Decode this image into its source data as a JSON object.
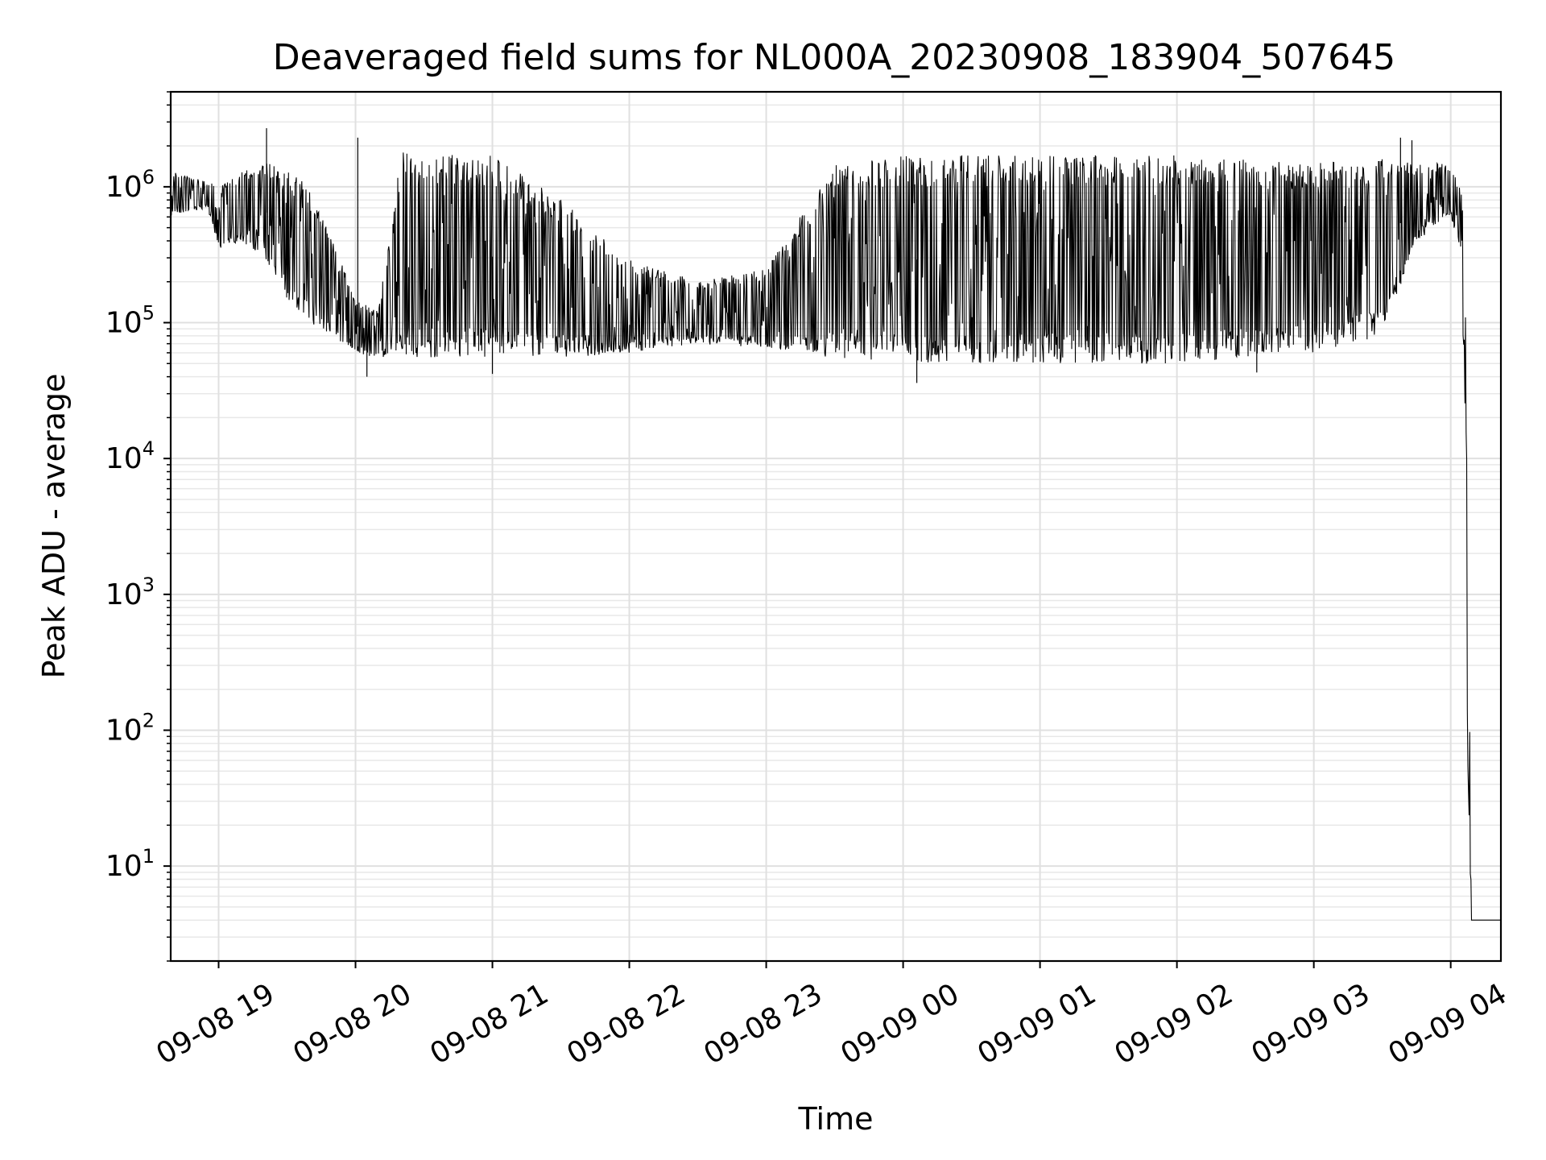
{
  "chart_data": {
    "type": "line",
    "title": "Deaveraged field sums for NL000A_20230908_183904_507645",
    "xlabel": "Time",
    "ylabel": "Peak ADU - average",
    "yscale": "log",
    "grid": true,
    "xlim": [
      "2023-09-08 18:39",
      "2023-09-09 04:22"
    ],
    "ylim": [
      2,
      5000000
    ],
    "x_ticks": [
      {
        "t": "2023-09-08 19:00",
        "label": "09-08 19"
      },
      {
        "t": "2023-09-08 20:00",
        "label": "09-08 20"
      },
      {
        "t": "2023-09-08 21:00",
        "label": "09-08 21"
      },
      {
        "t": "2023-09-08 22:00",
        "label": "09-08 22"
      },
      {
        "t": "2023-09-08 23:00",
        "label": "09-08 23"
      },
      {
        "t": "2023-09-09 00:00",
        "label": "09-09 00"
      },
      {
        "t": "2023-09-09 01:00",
        "label": "09-09 01"
      },
      {
        "t": "2023-09-09 02:00",
        "label": "09-09 02"
      },
      {
        "t": "2023-09-09 03:00",
        "label": "09-09 03"
      },
      {
        "t": "2023-09-09 04:00",
        "label": "09-09 04"
      }
    ],
    "y_ticks": [
      {
        "value": 10,
        "base": "10",
        "exp": "1"
      },
      {
        "value": 100,
        "base": "10",
        "exp": "2"
      },
      {
        "value": 1000,
        "base": "10",
        "exp": "3"
      },
      {
        "value": 10000,
        "base": "10",
        "exp": "4"
      },
      {
        "value": 100000,
        "base": "10",
        "exp": "5"
      },
      {
        "value": 1000000,
        "base": "10",
        "exp": "6"
      }
    ],
    "series": [
      {
        "color": "#000000",
        "envelope": [
          {
            "t": "2023-09-08 18:39",
            "low": 600000,
            "high": 1300000
          },
          {
            "t": "2023-09-08 18:55",
            "low": 700000,
            "high": 1100000
          },
          {
            "t": "2023-09-08 19:00",
            "low": 350000,
            "high": 1000000
          },
          {
            "t": "2023-09-08 19:10",
            "low": 400000,
            "high": 1300000
          },
          {
            "t": "2023-09-08 19:20",
            "low": 300000,
            "high": 1500000
          },
          {
            "t": "2023-09-08 19:30",
            "low": 150000,
            "high": 1400000
          },
          {
            "t": "2023-09-08 19:40",
            "low": 100000,
            "high": 1000000
          },
          {
            "t": "2023-09-08 19:50",
            "low": 80000,
            "high": 400000
          },
          {
            "t": "2023-09-08 20:00",
            "low": 60000,
            "high": 150000
          },
          {
            "t": "2023-09-08 20:10",
            "low": 55000,
            "high": 120000
          },
          {
            "t": "2023-09-08 20:20",
            "low": 55000,
            "high": 1800000
          },
          {
            "t": "2023-09-08 21:00",
            "low": 55000,
            "high": 1700000
          },
          {
            "t": "2023-09-08 21:30",
            "low": 55000,
            "high": 800000
          },
          {
            "t": "2023-09-08 22:00",
            "low": 60000,
            "high": 300000
          },
          {
            "t": "2023-09-08 22:30",
            "low": 70000,
            "high": 200000
          },
          {
            "t": "2023-09-08 23:00",
            "low": 65000,
            "high": 250000
          },
          {
            "t": "2023-09-08 23:30",
            "low": 55000,
            "high": 1500000
          },
          {
            "t": "2023-09-09 00:00",
            "low": 50000,
            "high": 1700000
          },
          {
            "t": "2023-09-09 01:00",
            "low": 50000,
            "high": 1700000
          },
          {
            "t": "2023-09-09 02:00",
            "low": 50000,
            "high": 1700000
          },
          {
            "t": "2023-09-09 03:00",
            "low": 60000,
            "high": 1500000
          },
          {
            "t": "2023-09-09 03:30",
            "low": 80000,
            "high": 1600000
          },
          {
            "t": "2023-09-09 03:45",
            "low": 400000,
            "high": 1500000
          },
          {
            "t": "2023-09-09 04:00",
            "low": 600000,
            "high": 1500000
          },
          {
            "t": "2023-09-09 04:05",
            "low": 300000,
            "high": 900000
          },
          {
            "t": "2023-09-09 04:07",
            "low": 100,
            "high": 100000
          },
          {
            "t": "2023-09-09 04:09",
            "low": 4,
            "high": 4
          },
          {
            "t": "2023-09-09 04:22",
            "low": 4,
            "high": 4
          }
        ],
        "spikes": [
          {
            "t": "2023-09-08 19:21",
            "value": 2700000
          },
          {
            "t": "2023-09-08 20:01",
            "value": 2300000
          },
          {
            "t": "2023-09-08 20:05",
            "value": 40000
          },
          {
            "t": "2023-09-08 21:00",
            "value": 42000
          },
          {
            "t": "2023-09-09 00:06",
            "value": 36000
          },
          {
            "t": "2023-09-09 02:35",
            "value": 43000
          },
          {
            "t": "2023-09-09 03:38",
            "value": 2300000
          },
          {
            "t": "2023-09-09 03:43",
            "value": 2200000
          }
        ]
      }
    ]
  }
}
